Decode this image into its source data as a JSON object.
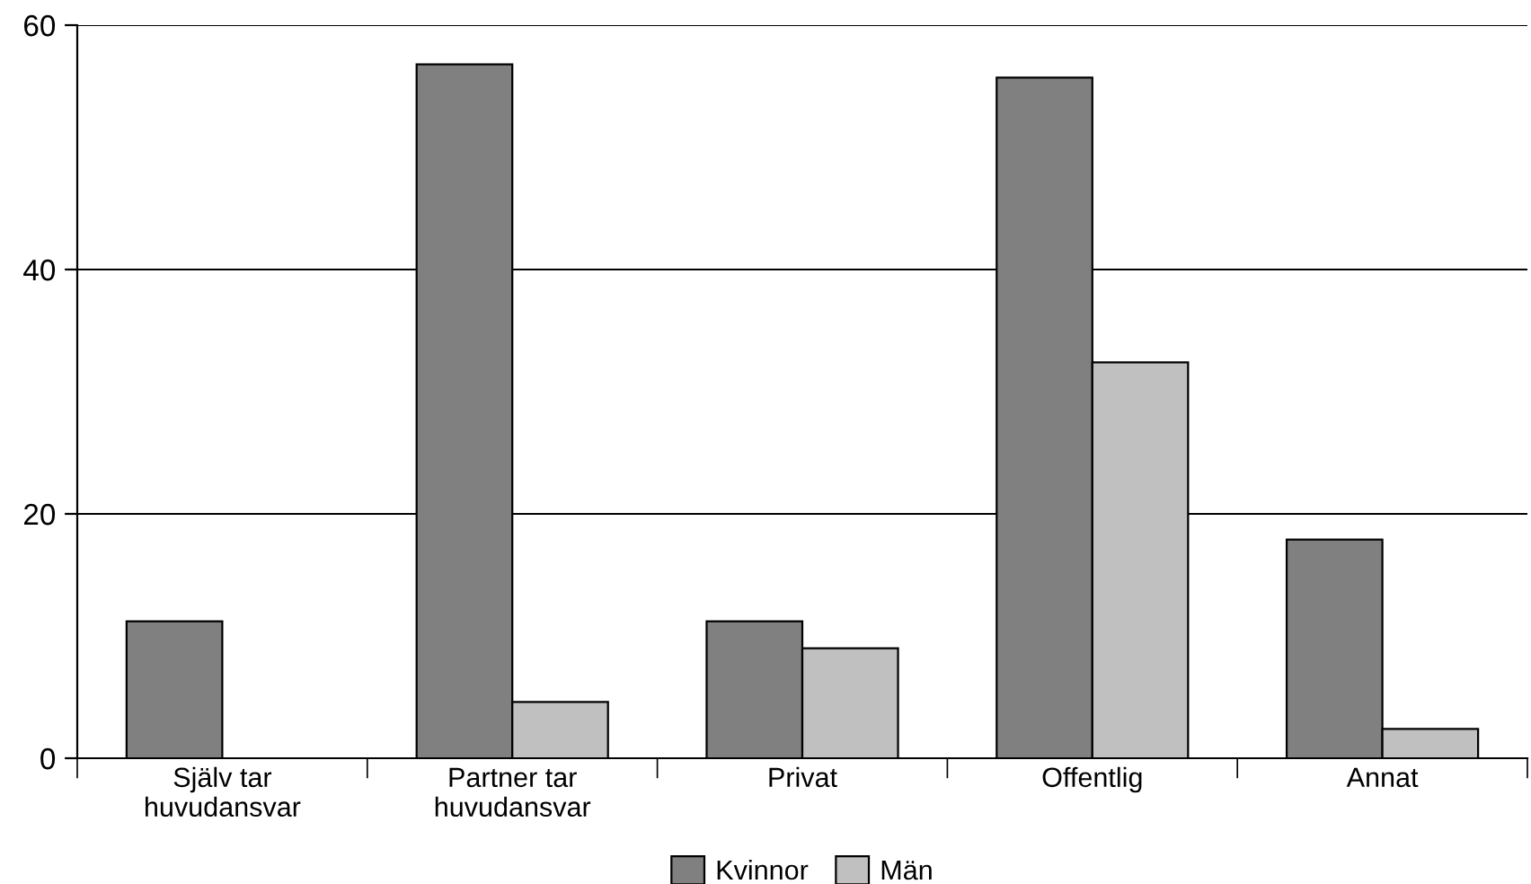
{
  "chart_data": {
    "type": "bar",
    "categories": [
      "Själv tar\nhuvudansvar",
      "Partner tar\nhuvudansvar",
      "Privat",
      "Offentlig",
      "Annat"
    ],
    "series": [
      {
        "name": "Kvinnor",
        "color": "#808080",
        "values": [
          11.2,
          56.8,
          11.2,
          55.7,
          17.9
        ]
      },
      {
        "name": "Män",
        "color": "#c0c0c0",
        "values": [
          null,
          4.6,
          9.0,
          32.4,
          2.4
        ]
      }
    ],
    "ylim": [
      0,
      60
    ],
    "yticks": [
      0,
      20,
      40,
      60
    ],
    "grid": "y",
    "legend": "bottom"
  }
}
